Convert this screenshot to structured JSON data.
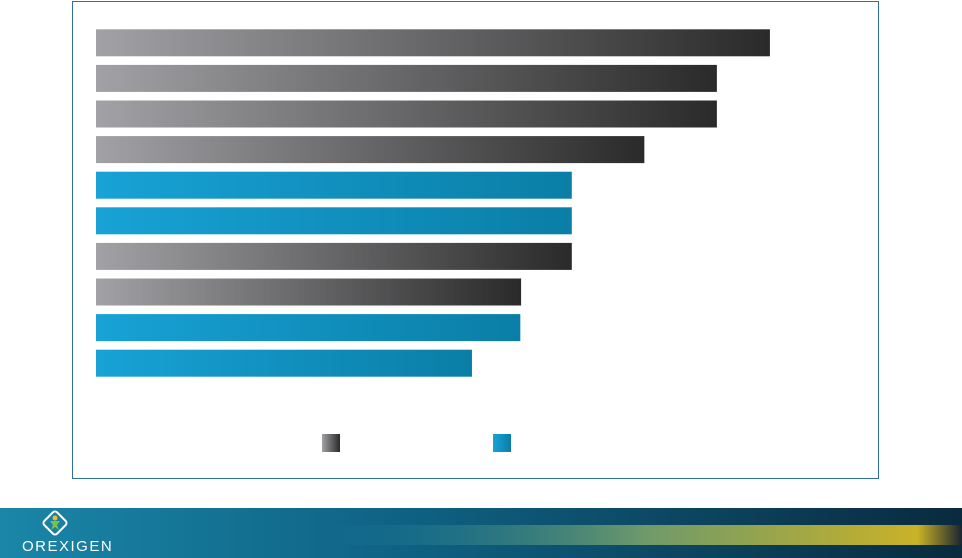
{
  "chart_data": {
    "type": "barh",
    "categories": [
      null,
      null,
      null,
      null,
      null,
      null,
      null,
      null,
      null,
      null
    ],
    "series": [
      {
        "color": "#5a5a5e",
        "gradient": [
          "#a2a2a6",
          "#2a2a2a"
        ],
        "values": [
          86.4,
          79.6,
          79.6,
          70.3,
          null,
          null,
          61,
          54.5,
          null,
          null
        ]
      },
      {
        "color": "#1396c8",
        "gradient": [
          "#18a2d6",
          "#0a7ea6"
        ],
        "values": [
          null,
          null,
          null,
          null,
          61,
          61,
          null,
          null,
          54.4,
          48.2
        ]
      }
    ],
    "xlim": [
      0,
      100
    ],
    "legend": "bottom"
  },
  "footer": {
    "logo_text": "OREXIGEN"
  }
}
